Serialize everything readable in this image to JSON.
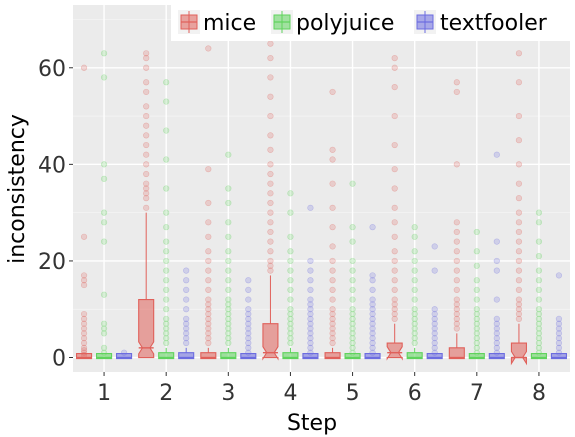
{
  "chart_data": {
    "type": "boxplot",
    "xlabel": "Step",
    "ylabel": "inconsistency",
    "categories": [
      "1",
      "2",
      "3",
      "4",
      "5",
      "6",
      "7",
      "8"
    ],
    "ylim": [
      -3,
      73
    ],
    "yticks": [
      0,
      20,
      40,
      60
    ],
    "grid": true,
    "legend_position": "top",
    "series": [
      {
        "name": "mice",
        "color": "#e0605a",
        "stats": [
          {
            "q1": 0,
            "median": 0,
            "q3": 0,
            "whisker_low": 0,
            "whisker_high": 0,
            "outliers": [
              0.5,
              1,
              1.5,
              2,
              3,
              4,
              5,
              6,
              7,
              8,
              9,
              15,
              16,
              17,
              25,
              60
            ]
          },
          {
            "q1": 0,
            "median": 2,
            "q3": 12,
            "whisker_low": 0,
            "whisker_high": 30,
            "outliers": [
              31,
              33,
              34,
              35,
              36,
              38,
              40,
              42,
              44,
              46,
              48,
              50,
              52,
              55,
              57,
              60,
              62,
              63
            ]
          },
          {
            "q1": 0,
            "median": 0,
            "q3": 1,
            "whisker_low": 0,
            "whisker_high": 2,
            "outliers": [
              3,
              4,
              5,
              6,
              7,
              8,
              9,
              10,
              11,
              12,
              14,
              16,
              18,
              20,
              22,
              25,
              28,
              32,
              39,
              64
            ]
          },
          {
            "q1": 0,
            "median": 1,
            "q3": 7,
            "whisker_low": 0,
            "whisker_high": 17,
            "outliers": [
              18,
              19,
              20,
              22,
              24,
              26,
              28,
              30,
              32,
              34,
              36,
              38,
              40,
              43,
              46,
              50,
              54,
              58,
              62,
              65
            ]
          },
          {
            "q1": 0,
            "median": 0,
            "q3": 1,
            "whisker_low": 0,
            "whisker_high": 2,
            "outliers": [
              3,
              4,
              5,
              6,
              7,
              8,
              9,
              10,
              12,
              14,
              16,
              18,
              20,
              23,
              27,
              31,
              36,
              41,
              43,
              55
            ]
          },
          {
            "q1": 0,
            "median": 1,
            "q3": 3,
            "whisker_low": 0,
            "whisker_high": 7,
            "outliers": [
              8,
              9,
              10,
              11,
              12,
              14,
              16,
              18,
              20,
              22,
              25,
              28,
              31,
              35,
              39,
              44,
              50,
              56,
              60,
              62
            ]
          },
          {
            "q1": 0,
            "median": 0,
            "q3": 2,
            "whisker_low": 0,
            "whisker_high": 5,
            "outliers": [
              6,
              7,
              8,
              9,
              10,
              11,
              12,
              14,
              16,
              18,
              20,
              22,
              24,
              26,
              28,
              40,
              55,
              57
            ]
          },
          {
            "q1": 0,
            "median": 0,
            "q3": 3,
            "whisker_low": 0,
            "whisker_high": 7,
            "outliers": [
              8,
              9,
              10,
              11,
              12,
              14,
              16,
              18,
              20,
              22,
              24,
              26,
              28,
              30,
              33,
              36,
              40,
              45,
              50,
              57,
              63
            ]
          }
        ]
      },
      {
        "name": "polyjuice",
        "color": "#5fd35c",
        "stats": [
          {
            "q1": 0,
            "median": 0,
            "q3": 0,
            "whisker_low": 0,
            "whisker_high": 0,
            "outliers": [
              1,
              2,
              5,
              6,
              7,
              13,
              24,
              28,
              30,
              37,
              40,
              58,
              63
            ]
          },
          {
            "q1": 0,
            "median": 0,
            "q3": 1,
            "whisker_low": 0,
            "whisker_high": 2,
            "outliers": [
              3,
              4,
              5,
              6,
              7,
              8,
              10,
              12,
              14,
              16,
              18,
              20,
              22,
              24,
              27,
              30,
              35,
              41,
              47,
              53,
              57
            ]
          },
          {
            "q1": 0,
            "median": 0,
            "q3": 1,
            "whisker_low": 0,
            "whisker_high": 2,
            "outliers": [
              3,
              4,
              5,
              6,
              7,
              8,
              9,
              10,
              11,
              12,
              14,
              16,
              18,
              20,
              22,
              25,
              28,
              32,
              35,
              42
            ]
          },
          {
            "q1": 0,
            "median": 0,
            "q3": 1,
            "whisker_low": 0,
            "whisker_high": 2,
            "outliers": [
              3,
              4,
              5,
              6,
              7,
              8,
              9,
              10,
              12,
              14,
              16,
              18,
              20,
              22,
              25,
              30,
              34
            ]
          },
          {
            "q1": 0,
            "median": 0,
            "q3": 0,
            "whisker_low": 0,
            "whisker_high": 0,
            "outliers": [
              1,
              2,
              3,
              4,
              5,
              6,
              7,
              8,
              9,
              10,
              12,
              14,
              16,
              18,
              20,
              24,
              27,
              36
            ]
          },
          {
            "q1": 0,
            "median": 0,
            "q3": 1,
            "whisker_low": 0,
            "whisker_high": 2,
            "outliers": [
              3,
              4,
              5,
              6,
              7,
              8,
              9,
              10,
              12,
              14,
              16,
              18,
              20,
              22,
              25,
              27
            ]
          },
          {
            "q1": 0,
            "median": 0,
            "q3": 0,
            "whisker_low": 0,
            "whisker_high": 0,
            "outliers": [
              1,
              2,
              3,
              4,
              5,
              6,
              7,
              8,
              9,
              10,
              12,
              14,
              16,
              19,
              22,
              26
            ]
          },
          {
            "q1": 0,
            "median": 0,
            "q3": 0,
            "whisker_low": 0,
            "whisker_high": 0,
            "outliers": [
              1,
              2,
              3,
              4,
              5,
              6,
              7,
              8,
              9,
              10,
              12,
              14,
              16,
              18,
              21,
              24,
              28,
              30
            ]
          }
        ]
      },
      {
        "name": "textfooler",
        "color": "#6c6ce0",
        "stats": [
          {
            "q1": 0,
            "median": 0,
            "q3": 0,
            "whisker_low": 0,
            "whisker_high": 0,
            "outliers": [
              1
            ]
          },
          {
            "q1": 0,
            "median": 0,
            "q3": 1,
            "whisker_low": 0,
            "whisker_high": 2,
            "outliers": [
              3,
              4,
              5,
              6,
              7,
              8,
              10,
              12,
              14,
              16,
              18
            ]
          },
          {
            "q1": 0,
            "median": 0,
            "q3": 0,
            "whisker_low": 0,
            "whisker_high": 0,
            "outliers": [
              1,
              2,
              3,
              4,
              5,
              6,
              7,
              8,
              9,
              10,
              12,
              14,
              16
            ]
          },
          {
            "q1": 0,
            "median": 0,
            "q3": 0,
            "whisker_low": 0,
            "whisker_high": 0,
            "outliers": [
              1,
              2,
              3,
              4,
              5,
              6,
              7,
              8,
              9,
              10,
              11,
              12,
              14,
              16,
              18,
              20,
              31
            ]
          },
          {
            "q1": 0,
            "median": 0,
            "q3": 0,
            "whisker_low": 0,
            "whisker_high": 0,
            "outliers": [
              1,
              2,
              3,
              4,
              5,
              6,
              7,
              8,
              9,
              10,
              11,
              12,
              14,
              16,
              17,
              27
            ]
          },
          {
            "q1": 0,
            "median": 0,
            "q3": 0,
            "whisker_low": 0,
            "whisker_high": 0,
            "outliers": [
              1,
              2,
              3,
              4,
              5,
              6,
              7,
              8,
              9,
              10,
              18,
              23
            ]
          },
          {
            "q1": 0,
            "median": 0,
            "q3": 0,
            "whisker_low": 0,
            "whisker_high": 0,
            "outliers": [
              1,
              2,
              3,
              4,
              5,
              6,
              7,
              8,
              12,
              18,
              20,
              24,
              42
            ]
          },
          {
            "q1": 0,
            "median": 0,
            "q3": 0,
            "whisker_low": 0,
            "whisker_high": 0,
            "outliers": [
              1,
              2,
              3,
              4,
              5,
              6,
              7,
              8,
              17
            ]
          }
        ]
      }
    ]
  }
}
